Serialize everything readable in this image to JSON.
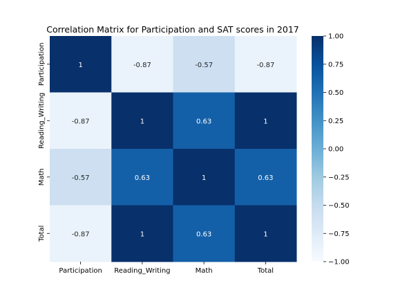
{
  "chart_data": {
    "type": "heatmap",
    "title": "Correlation Matrix for Participation and SAT scores in 2017",
    "x_labels": [
      "Participation",
      "Reading_Writing",
      "Math",
      "Total"
    ],
    "y_labels": [
      "Participation",
      "Reading_Writing",
      "Math",
      "Total"
    ],
    "values": [
      [
        1,
        -0.87,
        -0.57,
        -0.87
      ],
      [
        -0.87,
        1,
        0.63,
        1
      ],
      [
        -0.57,
        0.63,
        1,
        0.63
      ],
      [
        -0.87,
        1,
        0.63,
        1
      ]
    ],
    "cell_labels": [
      [
        "1",
        "-0.87",
        "-0.57",
        "-0.87"
      ],
      [
        "-0.87",
        "1",
        "0.63",
        "1"
      ],
      [
        "-0.57",
        "0.63",
        "1",
        "0.63"
      ],
      [
        "-0.87",
        "1",
        "0.63",
        "1"
      ]
    ],
    "colorbar": {
      "range": [
        -1,
        1
      ],
      "ticks": [
        1.0,
        0.75,
        0.5,
        0.25,
        0.0,
        -0.25,
        -0.5,
        -0.75,
        -1.0
      ],
      "tick_labels": [
        "1.00",
        "0.75",
        "0.50",
        "0.25",
        "0.00",
        "−0.25",
        "−0.50",
        "−0.75",
        "−1.00"
      ],
      "colormap": "Blues",
      "color_low": "#f7fbff",
      "color_high": "#08306b"
    }
  }
}
